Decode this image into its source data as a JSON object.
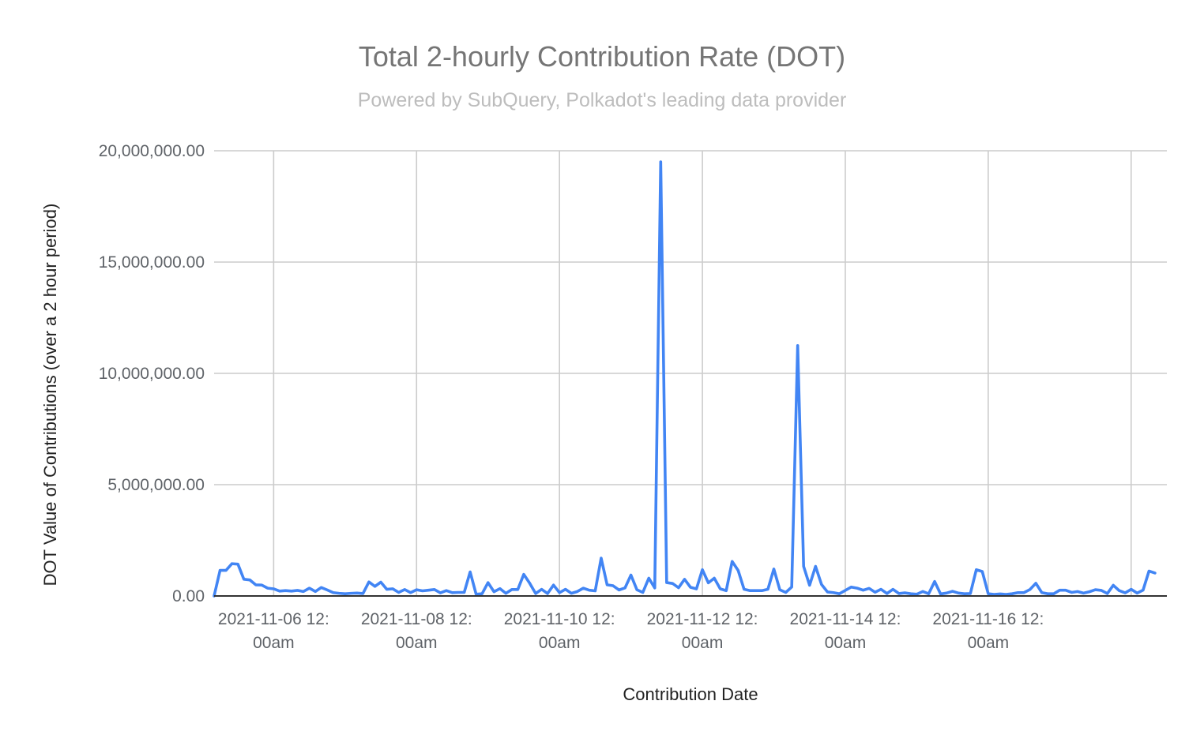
{
  "chart_data": {
    "type": "line",
    "title": "Total 2-hourly Contribution Rate (DOT)",
    "subtitle": "Powered by SubQuery, Polkadot's leading data provider",
    "xlabel": "Contribution Date",
    "ylabel": "DOT Value of Contributions (over a 2 hour period)",
    "ylim": [
      0,
      20000000
    ],
    "yticks": [
      {
        "value": 0,
        "label": "0.00"
      },
      {
        "value": 5000000,
        "label": "5,000,000.00"
      },
      {
        "value": 10000000,
        "label": "10,000,000.00"
      },
      {
        "value": 15000000,
        "label": "15,000,000.00"
      },
      {
        "value": 20000000,
        "label": "20,000,000.00"
      }
    ],
    "xlim": [
      "2021-11-05 04:00",
      "2021-11-18 12:00"
    ],
    "xticks": [
      {
        "value": "2021-11-06 00:00",
        "label": [
          "2021-11-06 12:",
          "00am"
        ]
      },
      {
        "value": "2021-11-08 00:00",
        "label": [
          "2021-11-08 12:",
          "00am"
        ]
      },
      {
        "value": "2021-11-10 00:00",
        "label": [
          "2021-11-10 12:",
          "00am"
        ]
      },
      {
        "value": "2021-11-12 00:00",
        "label": [
          "2021-11-12 12:",
          "00am"
        ]
      },
      {
        "value": "2021-11-14 00:00",
        "label": [
          "2021-11-14 12:",
          "00am"
        ]
      },
      {
        "value": "2021-11-16 00:00",
        "label": [
          "2021-11-16 12:",
          "00am"
        ]
      },
      {
        "value": "2021-11-18 00:00",
        "label": [
          "",
          ""
        ]
      }
    ],
    "grid": true,
    "series": [
      {
        "color": "#4285f4",
        "x_start": "2021-11-05 04:00",
        "x_step_hours": 2,
        "values": [
          0,
          1150000,
          1150000,
          1450000,
          1430000,
          750000,
          720000,
          500000,
          490000,
          350000,
          320000,
          220000,
          240000,
          220000,
          250000,
          200000,
          350000,
          200000,
          380000,
          270000,
          150000,
          120000,
          100000,
          120000,
          130000,
          110000,
          630000,
          430000,
          620000,
          300000,
          320000,
          160000,
          290000,
          150000,
          280000,
          230000,
          260000,
          290000,
          140000,
          240000,
          150000,
          160000,
          160000,
          1080000,
          80000,
          100000,
          600000,
          190000,
          330000,
          120000,
          290000,
          290000,
          970000,
          570000,
          110000,
          300000,
          110000,
          490000,
          150000,
          300000,
          120000,
          200000,
          350000,
          260000,
          230000,
          1700000,
          500000,
          460000,
          270000,
          360000,
          940000,
          280000,
          160000,
          800000,
          360000,
          19500000,
          600000,
          560000,
          370000,
          750000,
          390000,
          320000,
          1180000,
          590000,
          800000,
          320000,
          240000,
          1550000,
          1150000,
          300000,
          240000,
          240000,
          240000,
          300000,
          1210000,
          280000,
          160000,
          400000,
          11250000,
          1330000,
          480000,
          1330000,
          520000,
          180000,
          150000,
          100000,
          250000,
          400000,
          350000,
          260000,
          340000,
          170000,
          300000,
          110000,
          300000,
          110000,
          140000,
          100000,
          80000,
          200000,
          100000,
          650000,
          90000,
          130000,
          210000,
          130000,
          100000,
          110000,
          1180000,
          1100000,
          100000,
          70000,
          90000,
          70000,
          100000,
          150000,
          150000,
          290000,
          570000,
          150000,
          100000,
          100000,
          260000,
          260000,
          160000,
          200000,
          130000,
          190000,
          280000,
          250000,
          110000,
          480000,
          240000,
          140000,
          300000,
          130000,
          260000,
          1120000,
          1030000
        ]
      }
    ]
  }
}
